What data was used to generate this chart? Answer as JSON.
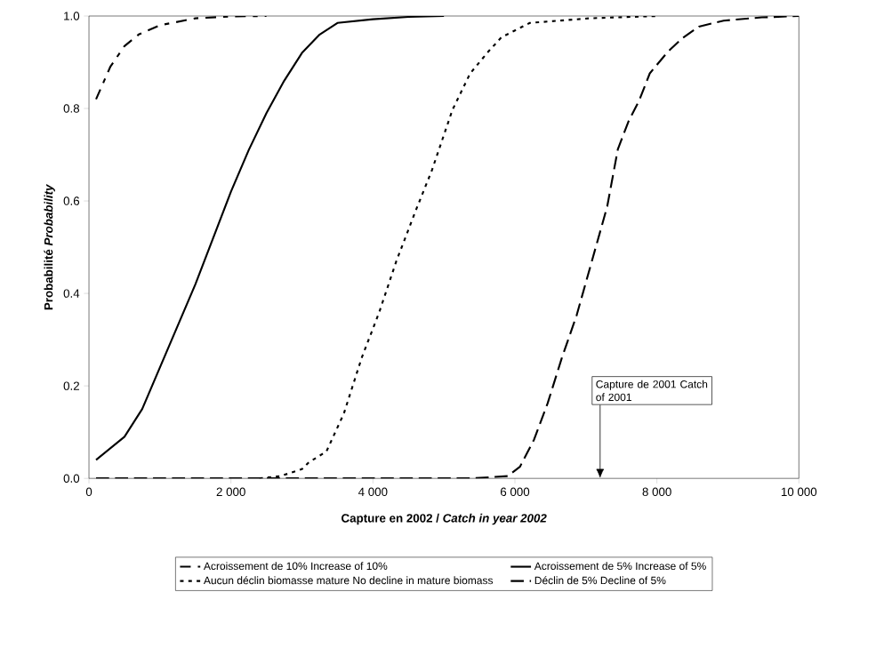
{
  "chart_data": {
    "type": "line",
    "xlabel": "Capture en 2002 / *Catch in year 2002*",
    "ylabel": "Probabilité *Probability*",
    "xlim": [
      0,
      10000
    ],
    "ylim": [
      0,
      1
    ],
    "xticks": [
      0,
      {
        "value": 2000,
        "label": "2 000"
      },
      {
        "value": 4000,
        "label": "4 000"
      },
      {
        "value": 6000,
        "label": "6 000"
      },
      {
        "value": 8000,
        "label": "8 000"
      },
      {
        "value": 10000,
        "label": "10 000"
      }
    ],
    "yticks": [
      {
        "value": 0,
        "label": "0.0"
      },
      {
        "value": 0.2,
        "label": "0.2"
      },
      {
        "value": 0.4,
        "label": "0.4"
      },
      {
        "value": 0.6,
        "label": "0.6"
      },
      {
        "value": 0.8,
        "label": "0.8"
      },
      {
        "value": 1,
        "label": "1.0"
      }
    ],
    "grid": false,
    "legend": "bottom",
    "marker": "none",
    "annotations": [
      "Capture de 2001 Catch of 2001"
    ],
    "series": [
      {
        "name": "Acroissement de 10% Increase of 10%",
        "color": "#000000",
        "line_style": "dashdot",
        "x": [
          100,
          300,
          500,
          700,
          1000,
          1500,
          2000,
          2500
        ],
        "values": [
          0.82,
          0.89,
          0.935,
          0.96,
          0.98,
          0.995,
          0.999,
          1
        ]
      },
      {
        "name": "Acroissement de 5% Increase of 5%",
        "color": "#000000",
        "line_style": "solid",
        "x": [
          100,
          500,
          750,
          1000,
          1250,
          1500,
          1750,
          2000,
          2250,
          2500,
          2750,
          3000,
          3250,
          3500,
          4000,
          4500,
          5000
        ],
        "values": [
          0.04,
          0.09,
          0.15,
          0.24,
          0.33,
          0.42,
          0.52,
          0.62,
          0.71,
          0.79,
          0.86,
          0.92,
          0.96,
          0.985,
          0.993,
          0.998,
          1
        ]
      },
      {
        "name": "Aucun déclin biomasse mature      No decline in mature biomass",
        "color": "#000000",
        "line_style": "dotted",
        "x": [
          2400,
          2700,
          3000,
          3100,
          3344,
          3590,
          3840,
          4090,
          4330,
          4600,
          4830,
          5120,
          5370,
          5620,
          5810,
          6210,
          7050,
          8000
        ],
        "values": [
          0,
          0.005,
          0.02,
          0.035,
          0.058,
          0.14,
          0.26,
          0.36,
          0.47,
          0.578,
          0.666,
          0.797,
          0.876,
          0.922,
          0.954,
          0.985,
          0.995,
          1
        ]
      },
      {
        "name": "Déclin de 5%      Decline of 5%",
        "color": "#000000",
        "line_style": "dashed",
        "x": [
          100,
          5400,
          5900,
          6070,
          6270,
          6460,
          6660,
          6870,
          7300,
          7450,
          7600,
          7750,
          7900,
          8150,
          8350,
          8590,
          8940,
          9480,
          10000
        ],
        "values": [
          0,
          0,
          0.005,
          0.025,
          0.084,
          0.162,
          0.26,
          0.353,
          0.588,
          0.712,
          0.772,
          0.817,
          0.876,
          0.922,
          0.951,
          0.977,
          0.99,
          0.997,
          1
        ]
      }
    ]
  }
}
